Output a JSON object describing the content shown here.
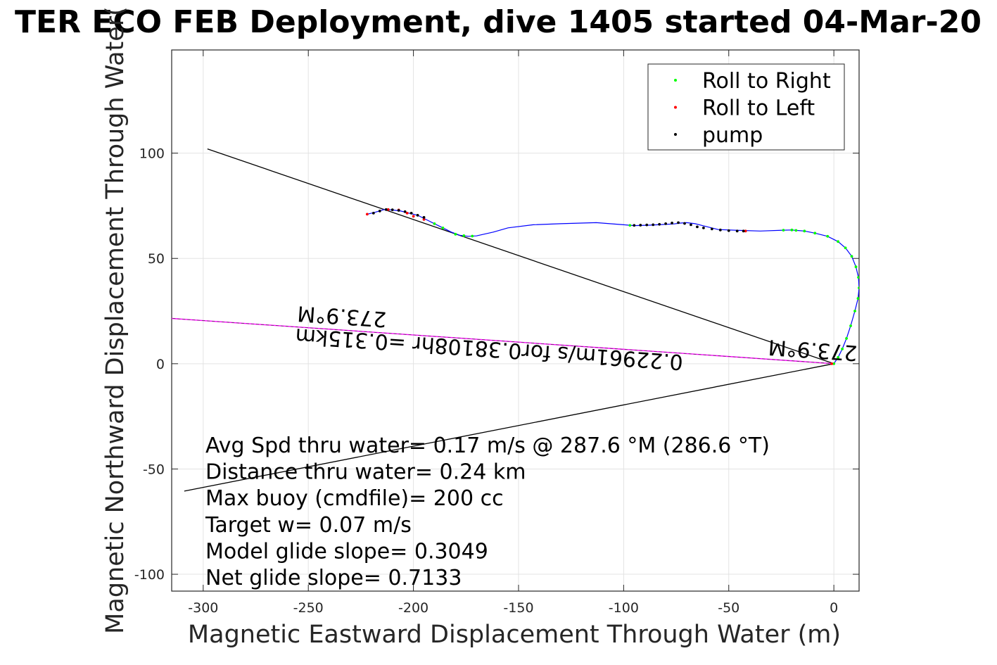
{
  "chart_data": {
    "type": "line",
    "title": "TER ECO FEB Deployment, dive 1405 started 04-Mar-20",
    "xlabel": "Magnetic Eastward Displacement Through Water (m)",
    "ylabel": "Magnetic Northward Displacement Through Water(",
    "xlim": [
      -315,
      12
    ],
    "ylim": [
      -108,
      149
    ],
    "xticks": [
      -300,
      -250,
      -200,
      -150,
      -100,
      -50,
      0
    ],
    "yticks": [
      -100,
      -50,
      0,
      50,
      100
    ],
    "grid": true,
    "legend_position": "top-right",
    "legend": [
      {
        "label": "Roll to Right",
        "color": "#00ff00"
      },
      {
        "label": "Roll to Left",
        "color": "#ff0000"
      },
      {
        "label": "pump",
        "color": "#000000"
      }
    ],
    "colors": {
      "track": "#0000ff",
      "ref_line": "#000000",
      "current_line": "#ff00ff"
    },
    "track": {
      "x": [
        0,
        2,
        4,
        6,
        8,
        10,
        11.5,
        12,
        11.7,
        10.5,
        8.5,
        5.5,
        2,
        -3,
        -9,
        -14,
        -18,
        -20,
        -24,
        -35,
        -45,
        -55,
        -62,
        -66,
        -70,
        -73,
        -76,
        -82,
        -88,
        -95,
        -100,
        -113,
        -130,
        -143,
        -155,
        -162,
        -170,
        -174,
        -178,
        -182,
        -186,
        -190,
        -194,
        -198,
        -202,
        -206,
        -210,
        -214,
        -218,
        -222
      ],
      "y": [
        0,
        3,
        7,
        12,
        18,
        25,
        31,
        36,
        41,
        46,
        51,
        55,
        58,
        60.5,
        62,
        63,
        63.3,
        63.5,
        63.4,
        63,
        63.3,
        63.7,
        65.5,
        66.5,
        67,
        66.8,
        66.4,
        66.1,
        65.8,
        65.6,
        66,
        67,
        66.5,
        66,
        64.5,
        62.5,
        60.7,
        60.5,
        61,
        62.5,
        64.5,
        66.5,
        68.5,
        70.5,
        71.5,
        72.5,
        73,
        73.2,
        72,
        71
      ]
    },
    "roll_right": {
      "x": [
        0,
        2,
        4,
        6,
        8,
        10,
        11.5,
        12,
        11.7,
        10.5,
        8.5,
        5.5,
        2,
        -3,
        -9,
        -14,
        -18,
        -20,
        -24,
        -97,
        -172,
        -176,
        -180,
        -186,
        -190
      ],
      "y": [
        0,
        3,
        7,
        12,
        18,
        25,
        31,
        36,
        41,
        46,
        51,
        55,
        58,
        60.5,
        62,
        63,
        63.3,
        63.5,
        63.4,
        65.7,
        60.6,
        60.8,
        61.5,
        64.5,
        66.5
      ]
    },
    "roll_left": {
      "x": [
        -1,
        -42,
        -195,
        -200,
        -203,
        -207,
        -212,
        -222
      ],
      "y": [
        0,
        63,
        68.5,
        70,
        71.5,
        73,
        73.2,
        71
      ]
    },
    "pump": {
      "x": [
        -95,
        -92,
        -89,
        -86,
        -83,
        -80,
        -77,
        -74,
        -71,
        -68,
        -65,
        -62,
        -58,
        -54,
        -50,
        -46,
        -43,
        -195,
        -198,
        -201,
        -204,
        -207,
        -210,
        -213,
        -216,
        -219
      ],
      "y": [
        65.7,
        65.8,
        65.9,
        66,
        66.2,
        66.5,
        66.8,
        67,
        66.6,
        66,
        65,
        64.5,
        64,
        63.5,
        63.2,
        63,
        63,
        69.5,
        70.5,
        71.5,
        72.2,
        72.8,
        73.1,
        73.2,
        72.5,
        71.5
      ]
    },
    "reference_lines": [
      {
        "x": [
          0,
          -298
        ],
        "y": [
          0,
          102
        ]
      },
      {
        "x": [
          0,
          -309
        ],
        "y": [
          0,
          -60.5
        ]
      }
    ],
    "current_line": {
      "x": [
        0,
        -315
      ],
      "y": [
        0,
        21.5
      ]
    },
    "annotations": [
      {
        "text": "273.9°M",
        "x": -10,
        "y": 7
      },
      {
        "text": "273.9°M",
        "x": -234,
        "y": 23
      },
      {
        "text": "0.22961m/s for0.38108hr =0.315km",
        "x": -164,
        "y": 7.5
      }
    ],
    "stats": [
      "Avg Spd thru water=  0.17 m/s @ 287.6 °M (286.6 °T)",
      "Distance thru water=  0.24 km",
      "Max buoy (cmdfile)= 200 cc",
      "Target w= 0.07 m/s",
      "Model glide slope= 0.3049",
      "Net glide slope= 0.7133"
    ]
  }
}
